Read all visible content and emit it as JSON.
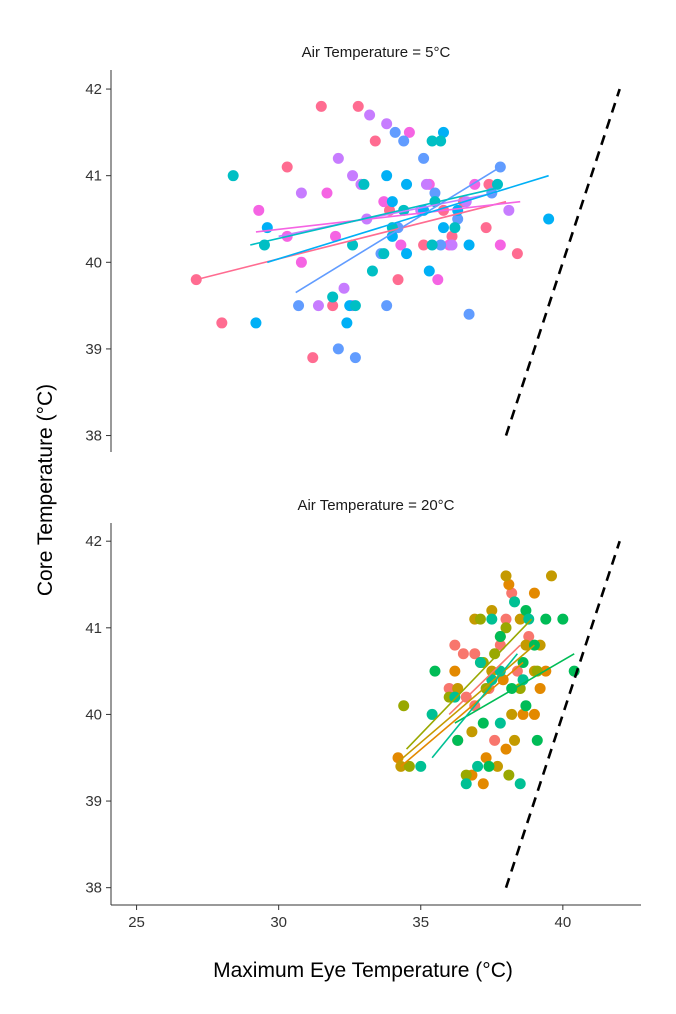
{
  "chart_data": {
    "type": "scatter",
    "ylabel": "Core Temperature (°C)",
    "xlabel": "Maximum Eye Temperature (°C)",
    "xlim": [
      24.1,
      42.75
    ],
    "xticks": [
      25,
      30,
      35,
      40
    ],
    "grid": false,
    "reference_line": {
      "style": "dashed",
      "color": "#000000",
      "points": [
        [
          38,
          38
        ],
        [
          42,
          42
        ]
      ]
    },
    "panels": [
      {
        "title": "Air Temperature = 5°C",
        "ylim": [
          37.81,
          42.22
        ],
        "yticks": [
          38,
          39,
          40,
          41,
          42
        ],
        "series": [
          {
            "color": "#FF6C91",
            "points": [
              [
                27.1,
                39.8
              ],
              [
                28.0,
                39.3
              ],
              [
                30.3,
                41.1
              ],
              [
                31.5,
                41.8
              ],
              [
                32.8,
                41.8
              ],
              [
                33.4,
                41.4
              ],
              [
                32.9,
                40.9
              ],
              [
                31.9,
                39.5
              ],
              [
                34.2,
                39.8
              ],
              [
                35.1,
                40.2
              ],
              [
                36.5,
                40.7
              ],
              [
                37.4,
                40.9
              ],
              [
                38.4,
                40.1
              ],
              [
                31.2,
                38.9
              ],
              [
                33.9,
                40.6
              ],
              [
                36.1,
                40.3
              ],
              [
                37.3,
                40.4
              ],
              [
                35.8,
                40.6
              ]
            ],
            "fit": [
              [
                27.1,
                39.8
              ],
              [
                38.0,
                40.7
              ]
            ]
          },
          {
            "color": "#F564E3",
            "points": [
              [
                29.3,
                40.6
              ],
              [
                30.3,
                40.3
              ],
              [
                31.7,
                40.8
              ],
              [
                32.0,
                40.3
              ],
              [
                33.7,
                40.7
              ],
              [
                35.3,
                40.9
              ],
              [
                36.9,
                40.9
              ],
              [
                34.6,
                41.5
              ],
              [
                37.8,
                40.2
              ],
              [
                32.6,
                39.5
              ],
              [
                34.3,
                40.2
              ],
              [
                36.0,
                40.2
              ],
              [
                30.8,
                40.0
              ],
              [
                35.6,
                39.8
              ]
            ],
            "fit": [
              [
                29.2,
                40.35
              ],
              [
                38.5,
                40.7
              ]
            ]
          },
          {
            "color": "#C77CFF",
            "points": [
              [
                33.2,
                41.7
              ],
              [
                33.8,
                41.6
              ],
              [
                32.1,
                41.2
              ],
              [
                32.6,
                41.0
              ],
              [
                30.8,
                40.8
              ],
              [
                33.1,
                40.5
              ],
              [
                35.0,
                40.6
              ],
              [
                36.6,
                40.7
              ],
              [
                38.1,
                40.6
              ],
              [
                32.3,
                39.7
              ],
              [
                35.2,
                40.9
              ],
              [
                31.4,
                39.5
              ],
              [
                36.1,
                40.2
              ],
              [
                32.9,
                40.9
              ]
            ],
            "fit": [
              [
                30.0,
                40.3
              ],
              [
                37.6,
                40.8
              ]
            ]
          },
          {
            "color": "#619CFF",
            "points": [
              [
                34.1,
                41.5
              ],
              [
                34.4,
                41.4
              ],
              [
                35.1,
                41.2
              ],
              [
                37.8,
                41.1
              ],
              [
                30.7,
                39.5
              ],
              [
                32.1,
                39.0
              ],
              [
                32.7,
                38.9
              ],
              [
                33.8,
                39.5
              ],
              [
                36.7,
                39.4
              ],
              [
                35.7,
                40.2
              ],
              [
                34.2,
                40.4
              ],
              [
                33.6,
                40.1
              ],
              [
                36.3,
                40.5
              ],
              [
                37.5,
                40.8
              ],
              [
                35.5,
                40.8
              ]
            ],
            "fit": [
              [
                30.6,
                39.65
              ],
              [
                37.8,
                41.1
              ]
            ]
          },
          {
            "color": "#00B0F6",
            "points": [
              [
                29.2,
                39.3
              ],
              [
                32.5,
                39.5
              ],
              [
                34.5,
                40.1
              ],
              [
                35.8,
                41.5
              ],
              [
                39.5,
                40.5
              ],
              [
                33.8,
                41.0
              ],
              [
                34.5,
                40.9
              ],
              [
                35.1,
                40.6
              ],
              [
                35.8,
                40.4
              ],
              [
                36.7,
                40.2
              ],
              [
                36.3,
                40.6
              ],
              [
                32.4,
                39.3
              ],
              [
                34.0,
                40.7
              ],
              [
                35.3,
                39.9
              ],
              [
                34.0,
                40.3
              ],
              [
                29.6,
                40.4
              ]
            ],
            "fit": [
              [
                29.6,
                40.0
              ],
              [
                39.5,
                41.0
              ]
            ]
          },
          {
            "color": "#00BFC4",
            "points": [
              [
                28.4,
                41.0
              ],
              [
                33.0,
                40.9
              ],
              [
                35.4,
                41.4
              ],
              [
                35.7,
                41.4
              ],
              [
                32.6,
                40.2
              ],
              [
                31.9,
                39.6
              ],
              [
                33.3,
                39.9
              ],
              [
                34.0,
                40.4
              ],
              [
                35.5,
                40.7
              ],
              [
                36.2,
                40.4
              ],
              [
                35.4,
                40.2
              ],
              [
                34.4,
                40.6
              ],
              [
                33.7,
                40.1
              ],
              [
                32.7,
                39.5
              ],
              [
                37.7,
                40.9
              ],
              [
                29.5,
                40.2
              ]
            ],
            "fit": [
              [
                29.0,
                40.2
              ],
              [
                37.6,
                40.85
              ]
            ]
          }
        ]
      },
      {
        "title": "Air Temperature = 20°C",
        "ylim": [
          37.8,
          42.21
        ],
        "yticks": [
          38,
          39,
          40,
          41,
          42
        ],
        "series": [
          {
            "color": "#F8766D",
            "points": [
              [
                38.2,
                41.4
              ],
              [
                36.2,
                40.8
              ],
              [
                36.5,
                40.7
              ],
              [
                36.9,
                40.7
              ],
              [
                38.0,
                41.1
              ],
              [
                38.8,
                40.9
              ],
              [
                37.4,
                40.3
              ],
              [
                36.6,
                40.2
              ],
              [
                36.9,
                40.1
              ],
              [
                37.8,
                40.8
              ],
              [
                38.4,
                40.5
              ],
              [
                36.3,
                39.7
              ],
              [
                37.6,
                39.7
              ],
              [
                36.0,
                40.3
              ]
            ],
            "fit": [
              [
                36.0,
                40.0
              ],
              [
                38.5,
                40.8
              ]
            ]
          },
          {
            "color": "#E38900",
            "points": [
              [
                38.1,
                41.5
              ],
              [
                39.0,
                41.4
              ],
              [
                37.1,
                40.6
              ],
              [
                37.9,
                40.4
              ],
              [
                39.2,
                40.3
              ],
              [
                39.4,
                40.5
              ],
              [
                38.6,
                40.0
              ],
              [
                39.0,
                40.0
              ],
              [
                36.2,
                40.5
              ],
              [
                34.2,
                39.5
              ],
              [
                37.3,
                39.5
              ],
              [
                36.8,
                39.3
              ],
              [
                37.2,
                39.2
              ],
              [
                38.0,
                39.6
              ],
              [
                37.8,
                40.9
              ]
            ],
            "fit": [
              [
                34.3,
                39.4
              ],
              [
                38.6,
                40.6
              ]
            ]
          },
          {
            "color": "#C49A00",
            "points": [
              [
                38.0,
                41.6
              ],
              [
                39.6,
                41.6
              ],
              [
                36.9,
                41.1
              ],
              [
                37.5,
                41.2
              ],
              [
                38.5,
                41.1
              ],
              [
                37.5,
                40.5
              ],
              [
                39.0,
                40.5
              ],
              [
                38.2,
                40.0
              ],
              [
                36.8,
                39.8
              ],
              [
                38.3,
                39.7
              ],
              [
                34.3,
                39.4
              ],
              [
                37.7,
                39.4
              ],
              [
                36.3,
                40.3
              ],
              [
                38.7,
                40.8
              ],
              [
                39.2,
                40.8
              ]
            ],
            "fit": [
              [
                34.2,
                39.45
              ],
              [
                39.0,
                40.8
              ]
            ]
          },
          {
            "color": "#99A800",
            "points": [
              [
                37.1,
                41.1
              ],
              [
                34.6,
                39.4
              ],
              [
                34.4,
                40.1
              ],
              [
                36.6,
                39.3
              ],
              [
                38.1,
                39.3
              ],
              [
                37.3,
                40.3
              ],
              [
                38.5,
                40.3
              ],
              [
                39.1,
                40.5
              ],
              [
                37.6,
                40.7
              ],
              [
                36.0,
                40.2
              ],
              [
                38.0,
                41.0
              ],
              [
                37.2,
                40.6
              ]
            ],
            "fit": [
              [
                34.5,
                39.6
              ],
              [
                38.9,
                41.1
              ]
            ]
          },
          {
            "color": "#00BC56",
            "points": [
              [
                38.7,
                41.2
              ],
              [
                39.4,
                41.1
              ],
              [
                40.0,
                41.1
              ],
              [
                39.0,
                40.8
              ],
              [
                40.4,
                40.5
              ],
              [
                35.5,
                40.5
              ],
              [
                37.2,
                39.9
              ],
              [
                39.1,
                39.7
              ],
              [
                37.4,
                39.4
              ],
              [
                36.3,
                39.7
              ],
              [
                38.2,
                40.3
              ],
              [
                38.7,
                40.1
              ],
              [
                37.8,
                40.9
              ],
              [
                38.6,
                40.6
              ]
            ],
            "fit": [
              [
                36.2,
                39.9
              ],
              [
                40.4,
                40.7
              ]
            ]
          },
          {
            "color": "#00C094",
            "points": [
              [
                38.3,
                41.3
              ],
              [
                38.8,
                41.1
              ],
              [
                37.5,
                41.1
              ],
              [
                35.4,
                40.0
              ],
              [
                35.0,
                39.4
              ],
              [
                36.6,
                39.2
              ],
              [
                37.0,
                39.4
              ],
              [
                38.5,
                39.2
              ],
              [
                37.5,
                40.4
              ],
              [
                37.8,
                40.5
              ],
              [
                37.1,
                40.6
              ],
              [
                38.6,
                40.4
              ],
              [
                37.8,
                39.9
              ],
              [
                36.2,
                40.2
              ]
            ],
            "fit": [
              [
                35.4,
                39.5
              ],
              [
                38.4,
                40.7
              ]
            ]
          }
        ]
      }
    ]
  }
}
